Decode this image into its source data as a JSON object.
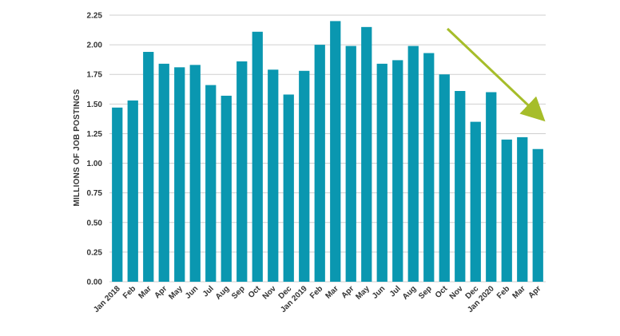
{
  "chart_data": {
    "type": "bar",
    "title": "",
    "xlabel": "",
    "ylabel": "MILLIONS OF JOB POSTINGS",
    "ylim": [
      0,
      2.25
    ],
    "yticks": [
      "0.00",
      "0.25",
      "0.50",
      "0.75",
      "1.00",
      "1.25",
      "1.50",
      "1.75",
      "2.00",
      "2.25"
    ],
    "grid": true,
    "legend": "none",
    "categories": [
      "Jan 2018",
      "Feb",
      "Mar",
      "Apr",
      "May",
      "Jun",
      "Jul",
      "Aug",
      "Sep",
      "Oct",
      "Nov",
      "Dec",
      "Jan 2019",
      "Feb",
      "Mar",
      "Apr",
      "May",
      "Jun",
      "Jul",
      "Aug",
      "Sep",
      "Oct",
      "Nov",
      "Dec",
      "Jan 2020",
      "Feb",
      "Mar",
      "Apr"
    ],
    "values": [
      1.47,
      1.53,
      1.94,
      1.84,
      1.81,
      1.83,
      1.66,
      1.57,
      1.86,
      2.11,
      1.79,
      1.58,
      1.78,
      2.0,
      2.2,
      1.99,
      2.15,
      1.84,
      1.87,
      1.99,
      1.93,
      1.75,
      1.61,
      1.35,
      1.6,
      1.2,
      1.22,
      1.12
    ],
    "colors": {
      "bar": "#0a97b0",
      "arrow": "#a6bd2a",
      "grid": "#cfcfcf"
    },
    "annotation": {
      "type": "arrow",
      "direction": "downward trend",
      "from_category": "Nov",
      "to_category": "Apr"
    }
  }
}
